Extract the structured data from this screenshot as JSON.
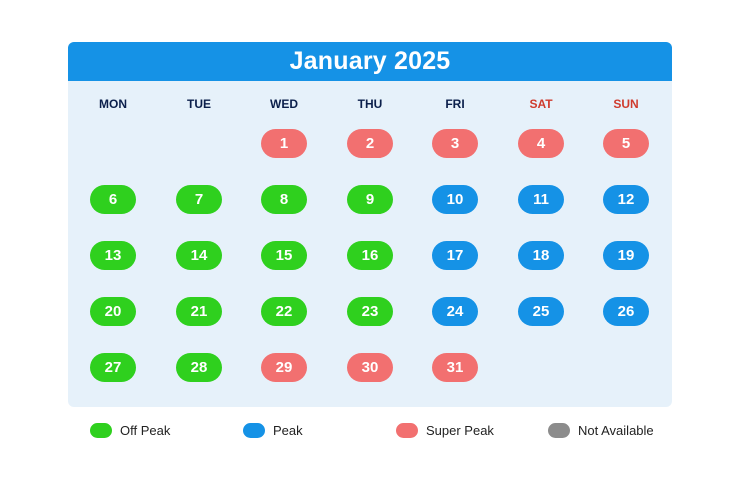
{
  "title": "January 2025",
  "weekdays": [
    "MON",
    "TUE",
    "WED",
    "THU",
    "FRI",
    "SAT",
    "SUN"
  ],
  "colors": {
    "header": "#1592e6",
    "calendar_bg": "#e6f1fa",
    "off_peak": "#2fd01e",
    "peak": "#1592e6",
    "super_peak": "#f27070",
    "not_available": "#8c8c8c",
    "weekday_text": "#0b1f4b",
    "weekend_text": "#cf3b2d"
  },
  "weeks": [
    [
      null,
      null,
      {
        "d": "1",
        "t": "super"
      },
      {
        "d": "2",
        "t": "super"
      },
      {
        "d": "3",
        "t": "super"
      },
      {
        "d": "4",
        "t": "super"
      },
      {
        "d": "5",
        "t": "super"
      }
    ],
    [
      {
        "d": "6",
        "t": "off"
      },
      {
        "d": "7",
        "t": "off"
      },
      {
        "d": "8",
        "t": "off"
      },
      {
        "d": "9",
        "t": "off"
      },
      {
        "d": "10",
        "t": "peak"
      },
      {
        "d": "11",
        "t": "peak"
      },
      {
        "d": "12",
        "t": "peak"
      }
    ],
    [
      {
        "d": "13",
        "t": "off"
      },
      {
        "d": "14",
        "t": "off"
      },
      {
        "d": "15",
        "t": "off"
      },
      {
        "d": "16",
        "t": "off"
      },
      {
        "d": "17",
        "t": "peak"
      },
      {
        "d": "18",
        "t": "peak"
      },
      {
        "d": "19",
        "t": "peak"
      }
    ],
    [
      {
        "d": "20",
        "t": "off"
      },
      {
        "d": "21",
        "t": "off"
      },
      {
        "d": "22",
        "t": "off"
      },
      {
        "d": "23",
        "t": "off"
      },
      {
        "d": "24",
        "t": "peak"
      },
      {
        "d": "25",
        "t": "peak"
      },
      {
        "d": "26",
        "t": "peak"
      }
    ],
    [
      {
        "d": "27",
        "t": "off"
      },
      {
        "d": "28",
        "t": "off"
      },
      {
        "d": "29",
        "t": "super"
      },
      {
        "d": "30",
        "t": "super"
      },
      {
        "d": "31",
        "t": "super"
      },
      null,
      null
    ]
  ],
  "legend": [
    {
      "label": "Off Peak",
      "t": "off"
    },
    {
      "label": "Peak",
      "t": "peak"
    },
    {
      "label": "Super Peak",
      "t": "super"
    },
    {
      "label": "Not Available",
      "t": "na"
    }
  ]
}
